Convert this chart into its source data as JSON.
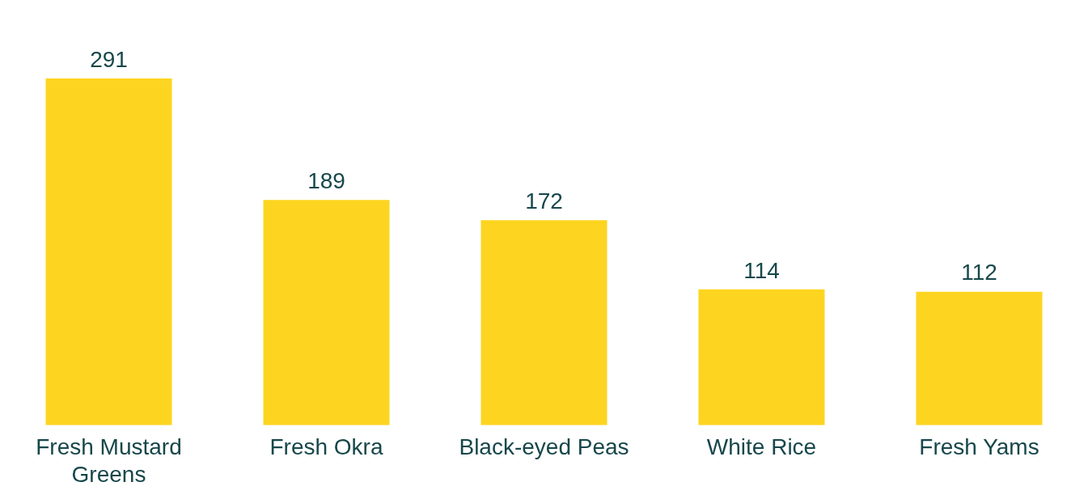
{
  "chart_data": {
    "type": "bar",
    "categories": [
      "Fresh Mustard Greens",
      "Fresh Okra",
      "Black-eyed Peas",
      "White Rice",
      "Fresh Yams"
    ],
    "values": [
      291,
      189,
      172,
      114,
      112
    ],
    "color": "#fdd520",
    "data_labels": true,
    "grid": false,
    "legend": false
  }
}
